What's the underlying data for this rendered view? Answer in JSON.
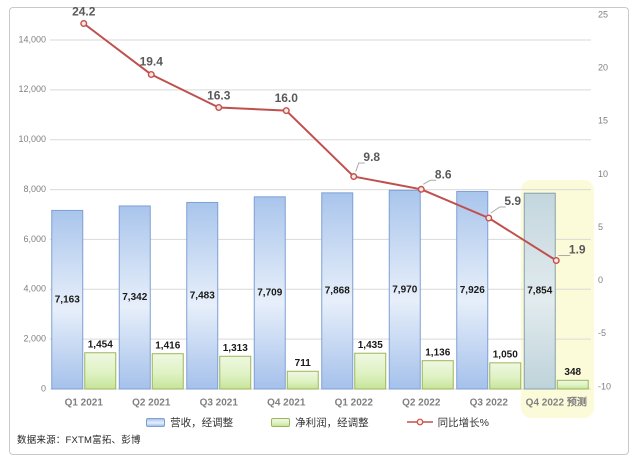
{
  "chart_data": {
    "type": "combo-bar-line",
    "categories": [
      "Q1 2021",
      "Q2 2021",
      "Q3 2021",
      "Q4 2021",
      "Q1 2022",
      "Q2 2022",
      "Q3 2022",
      "Q4 2022 预测"
    ],
    "series": [
      {
        "name": "营收，经调整",
        "type": "bar",
        "axis": "left",
        "values": [
          7163,
          7342,
          7483,
          7709,
          7868,
          7970,
          7926,
          7854
        ]
      },
      {
        "name": "净利润，经调整",
        "type": "bar",
        "axis": "left",
        "values": [
          1454,
          1416,
          1313,
          711,
          1435,
          1136,
          1050,
          348
        ]
      },
      {
        "name": "同比增长%",
        "type": "line",
        "axis": "right",
        "values": [
          24.2,
          19.4,
          16.3,
          16.0,
          9.8,
          8.6,
          5.9,
          1.9
        ]
      }
    ],
    "left_axis": {
      "min": 0,
      "max": 14000,
      "step": 2000,
      "labels": [
        "0",
        "2,000",
        "4,000",
        "6,000",
        "8,000",
        "10,000",
        "12,000",
        "14,000"
      ]
    },
    "right_axis": {
      "min": -10,
      "max": 25,
      "step": 5,
      "labels": [
        "-10",
        "-5",
        "0",
        "5",
        "10",
        "15",
        "20",
        "25"
      ]
    },
    "grid": true,
    "legend_position": "bottom",
    "forecast_category_index": 7,
    "forecast_category_label": "Q4 2022 预测"
  },
  "legend": {
    "items": [
      {
        "label": "营收，经调整",
        "swatch": "blue-bar"
      },
      {
        "label": "净利润，经调整",
        "swatch": "green-bar"
      },
      {
        "label": "同比增长%",
        "swatch": "red-line"
      }
    ]
  },
  "source_note": "数据来源：FXTM富拓、彭博",
  "colors": {
    "revenue_fill_top": "#a9c5ec",
    "revenue_fill_mid": "#e7effa",
    "revenue_fill_bottom": "#a5c1eb",
    "revenue_border": "#7e9fd4",
    "profit_fill_top": "#eff8e2",
    "profit_fill_mid": "#dff2c4",
    "profit_fill_bottom": "#c6e59a",
    "profit_border": "#9cb65a",
    "forecast_fill_top": "#c3d6de",
    "forecast_fill_mid": "#e2ebee",
    "forecast_fill_bottom": "#bed3da",
    "forecast_border": "#86a1ab",
    "line": "#c0504d",
    "marker_fill": "#fbe7e1",
    "highlight_band": "#fbfad9",
    "grid_line": "#d9d9d9",
    "axis_text": "#808080",
    "bar_label_text": "#1a1a1a",
    "line_label_text": "#595959",
    "leader_line": "#ababab"
  }
}
